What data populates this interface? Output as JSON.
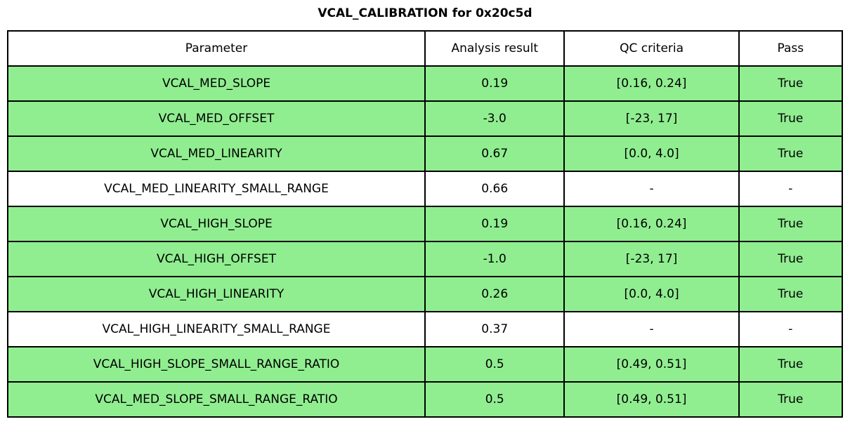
{
  "title": "VCAL_CALIBRATION for 0x20c5d",
  "colors": {
    "pass_row_green": "#90EE90",
    "neutral_row_white": "#FFFFFF",
    "border_black": "#000000",
    "text_black": "#000000",
    "background": "#FFFFFF"
  },
  "chart_data": {
    "type": "table",
    "title": "VCAL_CALIBRATION for 0x20c5d",
    "columns": [
      "Parameter",
      "Analysis result",
      "QC criteria",
      "Pass"
    ],
    "rows": [
      [
        "VCAL_MED_SLOPE",
        "0.19",
        "[0.16, 0.24]",
        "True"
      ],
      [
        "VCAL_MED_OFFSET",
        "-3.0",
        "[-23, 17]",
        "True"
      ],
      [
        "VCAL_MED_LINEARITY",
        "0.67",
        "[0.0, 4.0]",
        "True"
      ],
      [
        "VCAL_MED_LINEARITY_SMALL_RANGE",
        "0.66",
        "-",
        "-"
      ],
      [
        "VCAL_HIGH_SLOPE",
        "0.19",
        "[0.16, 0.24]",
        "True"
      ],
      [
        "VCAL_HIGH_OFFSET",
        "-1.0",
        "[-23, 17]",
        "True"
      ],
      [
        "VCAL_HIGH_LINEARITY",
        "0.26",
        "[0.0, 4.0]",
        "True"
      ],
      [
        "VCAL_HIGH_LINEARITY_SMALL_RANGE",
        "0.37",
        "-",
        "-"
      ],
      [
        "VCAL_HIGH_SLOPE_SMALL_RANGE_RATIO",
        "0.5",
        "[0.49, 0.51]",
        "True"
      ],
      [
        "VCAL_MED_SLOPE_SMALL_RANGE_RATIO",
        "0.5",
        "[0.49, 0.51]",
        "True"
      ]
    ],
    "row_highlight": [
      true,
      true,
      true,
      false,
      true,
      true,
      true,
      false,
      true,
      true
    ],
    "layout": {
      "grid": true,
      "header_background": "#FFFFFF",
      "highlight_background": "#90EE90"
    }
  }
}
